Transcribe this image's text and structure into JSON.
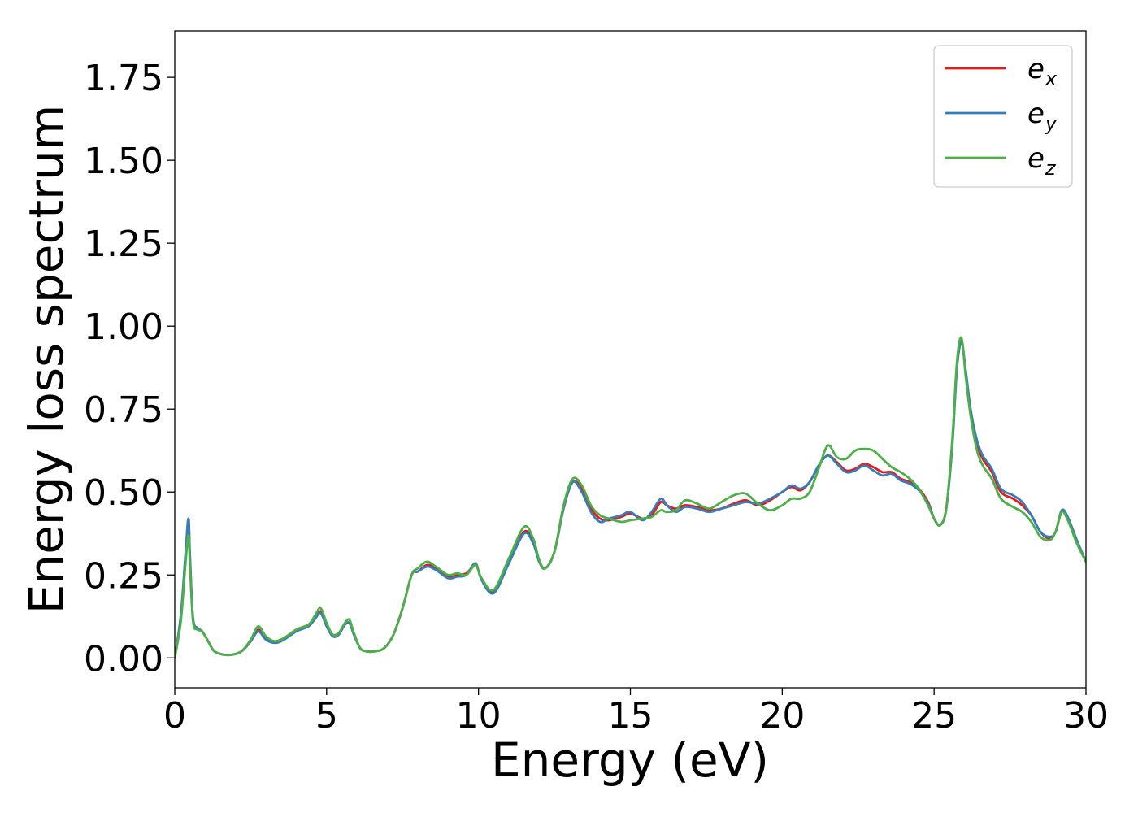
{
  "chart_data": {
    "type": "line",
    "xlabel": "Energy (eV)",
    "ylabel": "Energy loss spectrum",
    "xlim": [
      0,
      30
    ],
    "ylim": [
      -0.09,
      1.89
    ],
    "xticks": [
      0,
      5,
      10,
      15,
      20,
      25,
      30
    ],
    "xtick_labels": [
      "0",
      "5",
      "10",
      "15",
      "20",
      "25",
      "30"
    ],
    "yticks": [
      0.0,
      0.25,
      0.5,
      0.75,
      1.0,
      1.25,
      1.5,
      1.75
    ],
    "ytick_labels": [
      "0.00",
      "0.25",
      "0.50",
      "0.75",
      "1.00",
      "1.25",
      "1.50",
      "1.75"
    ],
    "grid": false,
    "legend_position": "top-right",
    "series": [
      {
        "name": "e_x",
        "label_base": "e",
        "label_sub": "x",
        "color": "#e41a1c",
        "x": [
          0,
          0.2,
          0.35,
          0.45,
          0.5,
          0.6,
          0.75,
          0.9,
          1.1,
          1.3,
          1.6,
          1.9,
          2.2,
          2.5,
          2.75,
          3.0,
          3.3,
          3.6,
          4.0,
          4.4,
          4.6,
          4.8,
          5.0,
          5.2,
          5.4,
          5.6,
          5.75,
          5.9,
          6.1,
          6.3,
          6.6,
          6.9,
          7.2,
          7.5,
          7.8,
          8.0,
          8.3,
          8.6,
          9.0,
          9.3,
          9.6,
          9.9,
          10.1,
          10.5,
          11.0,
          11.5,
          11.8,
          12.0,
          12.2,
          12.5,
          12.8,
          13.1,
          13.4,
          13.7,
          14.0,
          14.3,
          14.7,
          15.0,
          15.4,
          15.7,
          16.0,
          16.2,
          16.5,
          16.8,
          17.2,
          17.6,
          18.0,
          18.4,
          18.8,
          19.2,
          19.6,
          20.0,
          20.3,
          20.6,
          20.9,
          21.2,
          21.5,
          21.8,
          22.1,
          22.4,
          22.7,
          23.0,
          23.3,
          23.6,
          23.9,
          24.2,
          24.5,
          24.8,
          25.0,
          25.2,
          25.4,
          25.6,
          25.75,
          25.9,
          26.05,
          26.2,
          26.4,
          26.6,
          26.9,
          27.2,
          27.6,
          27.9,
          28.2,
          28.5,
          28.8,
          29.0,
          29.2,
          29.4,
          29.7,
          30.0
        ],
        "y": [
          0.0,
          0.12,
          0.3,
          0.42,
          0.3,
          0.12,
          0.09,
          0.08,
          0.05,
          0.02,
          0.01,
          0.01,
          0.02,
          0.05,
          0.085,
          0.06,
          0.05,
          0.06,
          0.085,
          0.1,
          0.12,
          0.14,
          0.1,
          0.07,
          0.075,
          0.1,
          0.105,
          0.07,
          0.03,
          0.02,
          0.02,
          0.03,
          0.07,
          0.15,
          0.25,
          0.26,
          0.28,
          0.27,
          0.245,
          0.25,
          0.255,
          0.28,
          0.24,
          0.2,
          0.29,
          0.38,
          0.35,
          0.29,
          0.27,
          0.32,
          0.45,
          0.53,
          0.51,
          0.45,
          0.42,
          0.415,
          0.425,
          0.435,
          0.42,
          0.43,
          0.47,
          0.46,
          0.45,
          0.46,
          0.455,
          0.445,
          0.45,
          0.465,
          0.475,
          0.46,
          0.475,
          0.5,
          0.515,
          0.505,
          0.53,
          0.58,
          0.61,
          0.59,
          0.565,
          0.57,
          0.585,
          0.575,
          0.56,
          0.56,
          0.54,
          0.53,
          0.51,
          0.47,
          0.42,
          0.4,
          0.45,
          0.65,
          0.88,
          0.96,
          0.85,
          0.75,
          0.65,
          0.6,
          0.56,
          0.5,
          0.48,
          0.46,
          0.43,
          0.38,
          0.36,
          0.38,
          0.44,
          0.42,
          0.35,
          0.29
        ]
      },
      {
        "name": "e_y",
        "label_base": "e",
        "label_sub": "y",
        "color": "#377eb8",
        "x": [
          0,
          0.2,
          0.35,
          0.45,
          0.5,
          0.6,
          0.75,
          0.9,
          1.1,
          1.3,
          1.6,
          1.9,
          2.2,
          2.5,
          2.75,
          3.0,
          3.3,
          3.6,
          4.0,
          4.4,
          4.6,
          4.8,
          5.0,
          5.2,
          5.4,
          5.6,
          5.75,
          5.9,
          6.1,
          6.3,
          6.6,
          6.9,
          7.2,
          7.5,
          7.8,
          8.0,
          8.3,
          8.6,
          9.0,
          9.3,
          9.6,
          9.9,
          10.1,
          10.5,
          11.0,
          11.5,
          11.8,
          12.0,
          12.2,
          12.5,
          12.8,
          13.1,
          13.4,
          13.7,
          14.0,
          14.3,
          14.7,
          15.0,
          15.4,
          15.7,
          16.0,
          16.2,
          16.5,
          16.8,
          17.2,
          17.6,
          18.0,
          18.4,
          18.8,
          19.2,
          19.6,
          20.0,
          20.3,
          20.6,
          20.9,
          21.2,
          21.5,
          21.8,
          22.1,
          22.4,
          22.7,
          23.0,
          23.3,
          23.6,
          23.9,
          24.2,
          24.5,
          24.8,
          25.0,
          25.2,
          25.4,
          25.6,
          25.75,
          25.9,
          26.05,
          26.2,
          26.4,
          26.6,
          26.9,
          27.2,
          27.6,
          27.9,
          28.2,
          28.5,
          28.8,
          29.0,
          29.2,
          29.4,
          29.7,
          30.0
        ],
        "y": [
          0.0,
          0.13,
          0.31,
          0.42,
          0.31,
          0.12,
          0.09,
          0.08,
          0.05,
          0.02,
          0.01,
          0.01,
          0.02,
          0.05,
          0.08,
          0.055,
          0.045,
          0.055,
          0.08,
          0.095,
          0.115,
          0.135,
          0.095,
          0.065,
          0.07,
          0.1,
          0.105,
          0.07,
          0.03,
          0.02,
          0.02,
          0.03,
          0.07,
          0.15,
          0.25,
          0.26,
          0.275,
          0.265,
          0.24,
          0.245,
          0.25,
          0.285,
          0.235,
          0.195,
          0.285,
          0.375,
          0.345,
          0.29,
          0.27,
          0.32,
          0.45,
          0.53,
          0.5,
          0.44,
          0.41,
          0.42,
          0.43,
          0.44,
          0.415,
          0.44,
          0.48,
          0.46,
          0.44,
          0.455,
          0.45,
          0.44,
          0.45,
          0.46,
          0.47,
          0.465,
          0.48,
          0.5,
          0.52,
          0.51,
          0.53,
          0.58,
          0.61,
          0.585,
          0.56,
          0.565,
          0.58,
          0.565,
          0.55,
          0.555,
          0.535,
          0.525,
          0.505,
          0.465,
          0.42,
          0.4,
          0.45,
          0.64,
          0.87,
          0.95,
          0.86,
          0.75,
          0.66,
          0.61,
          0.57,
          0.51,
          0.49,
          0.47,
          0.43,
          0.38,
          0.365,
          0.38,
          0.445,
          0.425,
          0.355,
          0.29
        ]
      },
      {
        "name": "e_z",
        "label_base": "e",
        "label_sub": "z",
        "color": "#4daf4a",
        "x": [
          0,
          0.2,
          0.35,
          0.45,
          0.5,
          0.6,
          0.75,
          0.9,
          1.1,
          1.3,
          1.6,
          1.9,
          2.2,
          2.5,
          2.75,
          3.0,
          3.3,
          3.6,
          4.0,
          4.4,
          4.6,
          4.8,
          5.0,
          5.2,
          5.4,
          5.6,
          5.75,
          5.9,
          6.1,
          6.3,
          6.6,
          6.9,
          7.2,
          7.5,
          7.8,
          8.0,
          8.3,
          8.6,
          9.0,
          9.3,
          9.6,
          9.9,
          10.1,
          10.5,
          11.0,
          11.5,
          11.8,
          12.0,
          12.2,
          12.5,
          12.8,
          13.1,
          13.4,
          13.7,
          14.0,
          14.3,
          14.7,
          15.0,
          15.4,
          15.7,
          16.0,
          16.2,
          16.5,
          16.8,
          17.2,
          17.6,
          18.0,
          18.4,
          18.8,
          19.2,
          19.6,
          20.0,
          20.3,
          20.6,
          20.9,
          21.2,
          21.5,
          21.8,
          22.1,
          22.4,
          22.7,
          23.0,
          23.3,
          23.6,
          23.9,
          24.2,
          24.5,
          24.8,
          25.0,
          25.2,
          25.4,
          25.6,
          25.75,
          25.9,
          26.05,
          26.2,
          26.4,
          26.6,
          26.9,
          27.2,
          27.6,
          27.9,
          28.2,
          28.5,
          28.8,
          29.0,
          29.2,
          29.4,
          29.7,
          30.0
        ],
        "y": [
          0.0,
          0.11,
          0.28,
          0.37,
          0.28,
          0.11,
          0.085,
          0.08,
          0.05,
          0.02,
          0.01,
          0.01,
          0.02,
          0.055,
          0.095,
          0.065,
          0.05,
          0.06,
          0.085,
          0.1,
          0.125,
          0.15,
          0.105,
          0.07,
          0.075,
          0.105,
          0.115,
          0.075,
          0.03,
          0.02,
          0.02,
          0.03,
          0.07,
          0.15,
          0.25,
          0.27,
          0.29,
          0.275,
          0.25,
          0.255,
          0.25,
          0.28,
          0.24,
          0.205,
          0.3,
          0.395,
          0.36,
          0.295,
          0.27,
          0.32,
          0.46,
          0.54,
          0.52,
          0.46,
          0.43,
          0.42,
          0.41,
          0.415,
          0.42,
          0.425,
          0.445,
          0.44,
          0.445,
          0.475,
          0.465,
          0.45,
          0.47,
          0.49,
          0.495,
          0.465,
          0.445,
          0.46,
          0.48,
          0.48,
          0.5,
          0.57,
          0.64,
          0.605,
          0.6,
          0.625,
          0.63,
          0.625,
          0.6,
          0.575,
          0.56,
          0.54,
          0.51,
          0.46,
          0.42,
          0.4,
          0.45,
          0.66,
          0.89,
          0.965,
          0.84,
          0.73,
          0.63,
          0.58,
          0.54,
          0.48,
          0.455,
          0.44,
          0.41,
          0.365,
          0.355,
          0.38,
          0.44,
          0.415,
          0.345,
          0.29
        ]
      }
    ]
  }
}
